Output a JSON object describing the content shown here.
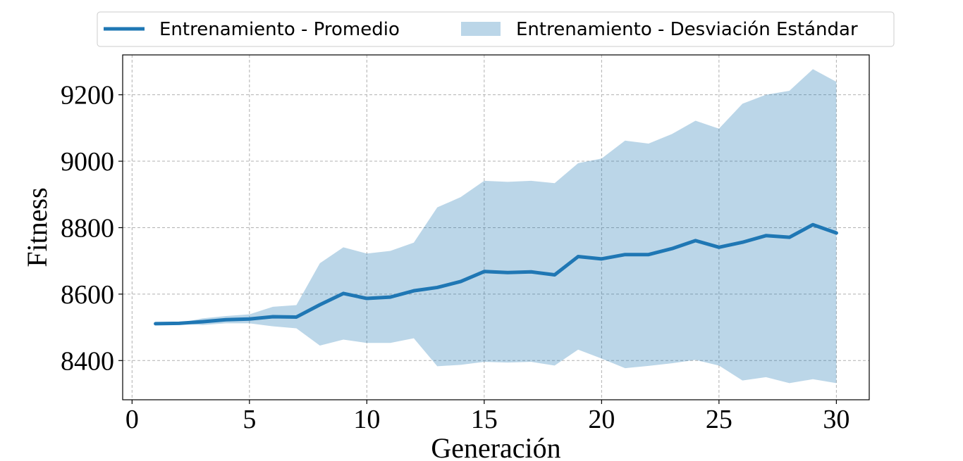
{
  "chart_data": {
    "type": "line",
    "xlabel": "Generación",
    "ylabel": "Fitness",
    "xlim": [
      -0.4,
      31.4
    ],
    "ylim": [
      8282,
      9320
    ],
    "xticks": [
      0,
      5,
      10,
      15,
      20,
      25,
      30
    ],
    "yticks": [
      8400,
      8600,
      8800,
      9000,
      9200
    ],
    "grid": true,
    "legend_position": "top",
    "x": [
      1,
      2,
      3,
      4,
      5,
      6,
      7,
      8,
      9,
      10,
      11,
      12,
      13,
      14,
      15,
      16,
      17,
      18,
      19,
      20,
      21,
      22,
      23,
      24,
      25,
      26,
      27,
      28,
      29,
      30
    ],
    "series": [
      {
        "name": "Entrenamiento  - Promedio",
        "kind": "line",
        "color": "#1f77b4",
        "values": [
          8511,
          8512,
          8517,
          8523,
          8525,
          8532,
          8531,
          8568,
          8602,
          8587,
          8591,
          8610,
          8620,
          8638,
          8668,
          8665,
          8667,
          8658,
          8713,
          8706,
          8719,
          8719,
          8737,
          8761,
          8741,
          8756,
          8776,
          8771,
          8809,
          8784
        ]
      },
      {
        "name": "Entrenamiento  - Desviación Estándar",
        "kind": "band",
        "color": "#1f77b4",
        "opacity": 0.3,
        "lower": [
          8511,
          8511,
          8507,
          8512,
          8512,
          8503,
          8497,
          8445,
          8463,
          8453,
          8453,
          8467,
          8383,
          8387,
          8396,
          8394,
          8396,
          8385,
          8433,
          8406,
          8377,
          8384,
          8392,
          8402,
          8385,
          8340,
          8350,
          8332,
          8344,
          8332
        ],
        "upper": [
          8511,
          8513,
          8527,
          8534,
          8539,
          8562,
          8567,
          8693,
          8741,
          8722,
          8730,
          8755,
          8861,
          8892,
          8941,
          8938,
          8941,
          8934,
          8994,
          9008,
          9062,
          9053,
          9082,
          9122,
          9098,
          9173,
          9200,
          9212,
          9277,
          9239
        ]
      }
    ]
  }
}
